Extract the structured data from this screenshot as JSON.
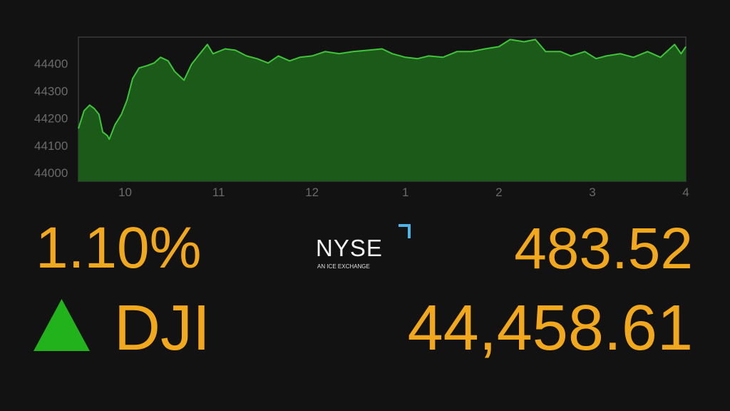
{
  "chart_data": {
    "type": "area",
    "x": [
      9.5,
      9.56,
      9.62,
      9.67,
      9.72,
      9.76,
      9.81,
      9.83,
      9.89,
      9.96,
      10.02,
      10.08,
      10.15,
      10.23,
      10.31,
      10.38,
      10.46,
      10.53,
      10.63,
      10.71,
      10.8,
      10.88,
      10.94,
      11.07,
      11.18,
      11.3,
      11.41,
      11.53,
      11.64,
      11.76,
      11.87,
      12.0,
      12.14,
      12.29,
      12.44,
      12.6,
      12.75,
      12.86,
      13.0,
      13.13,
      13.25,
      13.4,
      13.55,
      13.7,
      13.85,
      14.0,
      14.12,
      14.27,
      14.39,
      14.5,
      14.66,
      14.77,
      14.92,
      15.04,
      15.15,
      15.3,
      15.44,
      15.59,
      15.73,
      15.88,
      15.95,
      16.0
    ],
    "series": [
      {
        "color": "#3fc43a",
        "fill": "#1c5a1a",
        "values": [
          44162,
          44227,
          44248,
          44235,
          44214,
          44149,
          44136,
          44123,
          44175,
          44214,
          44266,
          44345,
          44384,
          44392,
          44402,
          44423,
          44410,
          44371,
          44339,
          44397,
          44436,
          44470,
          44436,
          44454,
          44449,
          44428,
          44418,
          44402,
          44428,
          44410,
          44423,
          44428,
          44444,
          44436,
          44444,
          44449,
          44454,
          44436,
          44423,
          44418,
          44428,
          44423,
          44444,
          44444,
          44454,
          44462,
          44488,
          44480,
          44488,
          44444,
          44444,
          44428,
          44444,
          44418,
          44428,
          44436,
          44423,
          44444,
          44423,
          44470,
          44436,
          44462
        ]
      }
    ],
    "xlim": [
      9.5,
      16
    ],
    "xticks": [
      10,
      11,
      {
        "value": 12,
        "label": "12"
      },
      {
        "value": 13,
        "label": "1"
      },
      {
        "value": 14,
        "label": "2"
      },
      {
        "value": 15,
        "label": "3"
      },
      {
        "value": 16,
        "label": "4"
      }
    ],
    "ylim": [
      43969,
      44497
    ],
    "yticks": [
      44000,
      44100,
      44200,
      44300,
      44400
    ]
  },
  "ticker": {
    "percent_change": "1.10%",
    "point_change": "483.52",
    "symbol": "DJI",
    "price": "44,458.61"
  },
  "logo": {
    "name": "NYSE",
    "tagline": "AN ICE EXCHANGE"
  }
}
